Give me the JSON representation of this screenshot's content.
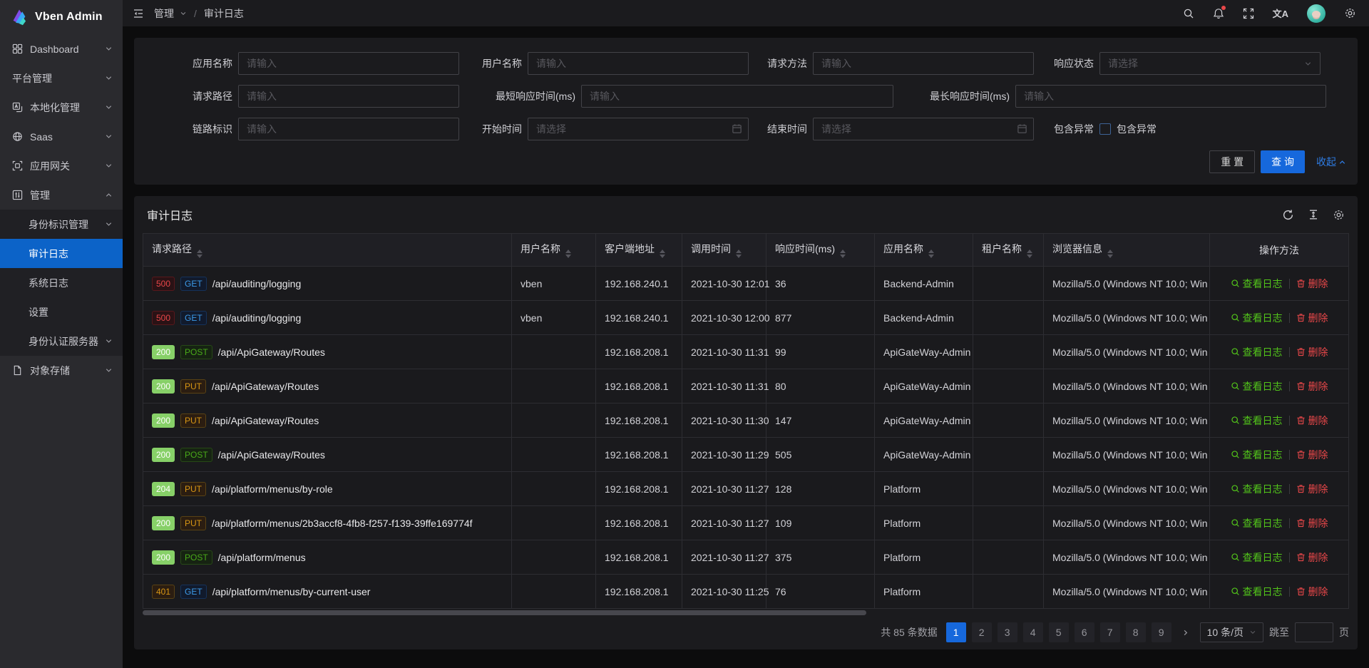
{
  "app": {
    "title": "Vben Admin"
  },
  "colors": {
    "accent": "#1668dc",
    "sidebar_active_bg": "#0c63c8",
    "success_badge": "#87d068",
    "link_green": "#52c41a",
    "link_red": "#e84749",
    "link_blue": "#2e7ce4",
    "tag_get_text": "#3c9ae8",
    "tag_post_text": "#49aa19",
    "tag_put_text": "#d89614",
    "tag_error_text": "#e84749",
    "tag_warn_text": "#d89614",
    "notification_dot": "#e84749"
  },
  "header": {
    "breadcrumb": {
      "root": "管理",
      "separator": "/",
      "current": "审计日志"
    },
    "translate_glyph": "文A",
    "has_notification_dot": true,
    "right_icons": [
      "search-icon",
      "notification-bell-icon",
      "fullscreen-icon",
      "translate-icon",
      "avatar",
      "settings-icon"
    ]
  },
  "sidebar": {
    "items": [
      {
        "label": "Dashboard",
        "icon": "dashboard-icon",
        "chevron": "down"
      },
      {
        "label": "平台管理",
        "chevron": "down"
      },
      {
        "label": "本地化管理",
        "icon": "localization-icon",
        "chevron": "down"
      },
      {
        "label": "Saas",
        "icon": "saas-icon",
        "chevron": "down"
      },
      {
        "label": "应用网关",
        "icon": "gateway-icon",
        "chevron": "down"
      },
      {
        "label": "管理",
        "icon": "manage-icon",
        "chevron": "up"
      },
      {
        "label": "身份标识管理",
        "sub": true,
        "chevron": "down"
      },
      {
        "label": "审计日志",
        "sub": true,
        "active": true
      },
      {
        "label": "系统日志",
        "sub": true
      },
      {
        "label": "设置",
        "sub": true
      },
      {
        "label": "身份认证服务器",
        "sub": true,
        "chevron": "down"
      },
      {
        "label": "对象存储",
        "icon": "storage-icon",
        "chevron": "down"
      }
    ]
  },
  "filter": {
    "rows": [
      [
        {
          "name": "app-name",
          "label": "应用名称",
          "placeholder": "请输入",
          "type": "text"
        },
        {
          "name": "user-name",
          "label": "用户名称",
          "placeholder": "请输入",
          "type": "text"
        },
        {
          "name": "request-method",
          "label": "请求方法",
          "placeholder": "请输入",
          "type": "text"
        },
        {
          "name": "response-status",
          "label": "响应状态",
          "placeholder": "请选择",
          "type": "select"
        }
      ],
      [
        {
          "name": "request-path",
          "label": "请求路径",
          "placeholder": "请输入",
          "type": "text"
        },
        {
          "name": "min-response-time",
          "label": "最短响应时间(ms)",
          "placeholder": "请输入",
          "type": "text"
        },
        {
          "name": "max-response-time",
          "label": "最长响应时间(ms)",
          "placeholder": "请输入",
          "type": "text"
        }
      ],
      [
        {
          "name": "trace-id",
          "label": "链路标识",
          "placeholder": "请输入",
          "type": "text"
        },
        {
          "name": "start-time",
          "label": "开始时间",
          "placeholder": "请选择",
          "type": "date"
        },
        {
          "name": "end-time",
          "label": "结束时间",
          "placeholder": "请选择",
          "type": "date"
        },
        {
          "name": "include-exception",
          "label": "包含异常",
          "checkbox_label": "包含异常",
          "type": "checkbox"
        }
      ]
    ],
    "buttons": {
      "reset": "重 置",
      "query": "查 询",
      "collapse": "收起"
    }
  },
  "table": {
    "title": "审计日志",
    "toolbar_icons": [
      "refresh-icon",
      "row-height-icon",
      "settings-icon"
    ],
    "columns": [
      {
        "label": "请求路径",
        "sortable": true
      },
      {
        "label": "用户名称",
        "sortable": true
      },
      {
        "label": "客户端地址",
        "sortable": true
      },
      {
        "label": "调用时间",
        "sortable": true
      },
      {
        "label": "响应时间(ms)",
        "sortable": true
      },
      {
        "label": "应用名称",
        "sortable": true
      },
      {
        "label": "租户名称",
        "sortable": true
      },
      {
        "label": "浏览器信息",
        "sortable": true
      },
      {
        "label": "操作方法",
        "sortable": false,
        "align": "center"
      }
    ],
    "actions": {
      "view": "查看日志",
      "delete": "删除"
    },
    "rows": [
      {
        "status": "500",
        "status_type": "error",
        "method": "GET",
        "method_type": "get",
        "path": "/api/auditing/logging",
        "user": "vben",
        "client": "192.168.240.1",
        "time": "2021-10-30 12:01",
        "elapsed": "36",
        "app": "Backend-Admin",
        "tenant": "",
        "browser": "Mozilla/5.0 (Windows NT 10.0; Win"
      },
      {
        "status": "500",
        "status_type": "error",
        "method": "GET",
        "method_type": "get",
        "path": "/api/auditing/logging",
        "user": "vben",
        "client": "192.168.240.1",
        "time": "2021-10-30 12:00",
        "elapsed": "877",
        "app": "Backend-Admin",
        "tenant": "",
        "browser": "Mozilla/5.0 (Windows NT 10.0; Win"
      },
      {
        "status": "200",
        "status_type": "success",
        "method": "POST",
        "method_type": "post",
        "path": "/api/ApiGateway/Routes",
        "user": "",
        "client": "192.168.208.1",
        "time": "2021-10-30 11:31",
        "elapsed": "99",
        "app": "ApiGateWay-Admin",
        "tenant": "",
        "browser": "Mozilla/5.0 (Windows NT 10.0; Win"
      },
      {
        "status": "200",
        "status_type": "success",
        "method": "PUT",
        "method_type": "put",
        "path": "/api/ApiGateway/Routes",
        "user": "",
        "client": "192.168.208.1",
        "time": "2021-10-30 11:31",
        "elapsed": "80",
        "app": "ApiGateWay-Admin",
        "tenant": "",
        "browser": "Mozilla/5.0 (Windows NT 10.0; Win"
      },
      {
        "status": "200",
        "status_type": "success",
        "method": "PUT",
        "method_type": "put",
        "path": "/api/ApiGateway/Routes",
        "user": "",
        "client": "192.168.208.1",
        "time": "2021-10-30 11:30",
        "elapsed": "147",
        "app": "ApiGateWay-Admin",
        "tenant": "",
        "browser": "Mozilla/5.0 (Windows NT 10.0; Win"
      },
      {
        "status": "200",
        "status_type": "success",
        "method": "POST",
        "method_type": "post",
        "path": "/api/ApiGateway/Routes",
        "user": "",
        "client": "192.168.208.1",
        "time": "2021-10-30 11:29",
        "elapsed": "505",
        "app": "ApiGateWay-Admin",
        "tenant": "",
        "browser": "Mozilla/5.0 (Windows NT 10.0; Win"
      },
      {
        "status": "204",
        "status_type": "success",
        "method": "PUT",
        "method_type": "put",
        "path": "/api/platform/menus/by-role",
        "user": "",
        "client": "192.168.208.1",
        "time": "2021-10-30 11:27",
        "elapsed": "128",
        "app": "Platform",
        "tenant": "",
        "browser": "Mozilla/5.0 (Windows NT 10.0; Win"
      },
      {
        "status": "200",
        "status_type": "success",
        "method": "PUT",
        "method_type": "put",
        "path": "/api/platform/menus/2b3accf8-4fb8-f257-f139-39ffe169774f",
        "user": "",
        "client": "192.168.208.1",
        "time": "2021-10-30 11:27",
        "elapsed": "109",
        "app": "Platform",
        "tenant": "",
        "browser": "Mozilla/5.0 (Windows NT 10.0; Win"
      },
      {
        "status": "200",
        "status_type": "success",
        "method": "POST",
        "method_type": "post",
        "path": "/api/platform/menus",
        "user": "",
        "client": "192.168.208.1",
        "time": "2021-10-30 11:27",
        "elapsed": "375",
        "app": "Platform",
        "tenant": "",
        "browser": "Mozilla/5.0 (Windows NT 10.0; Win"
      },
      {
        "status": "401",
        "status_type": "warn",
        "method": "GET",
        "method_type": "get",
        "path": "/api/platform/menus/by-current-user",
        "user": "",
        "client": "192.168.208.1",
        "time": "2021-10-30 11:25",
        "elapsed": "76",
        "app": "Platform",
        "tenant": "",
        "browser": "Mozilla/5.0 (Windows NT 10.0; Win"
      }
    ]
  },
  "pagination": {
    "total_text": "共 85 条数据",
    "pages": [
      "1",
      "2",
      "3",
      "4",
      "5",
      "6",
      "7",
      "8",
      "9"
    ],
    "active_page": "1",
    "page_size_label": "10 条/页",
    "jump_prefix": "跳至",
    "jump_suffix": "页",
    "jump_value": ""
  }
}
